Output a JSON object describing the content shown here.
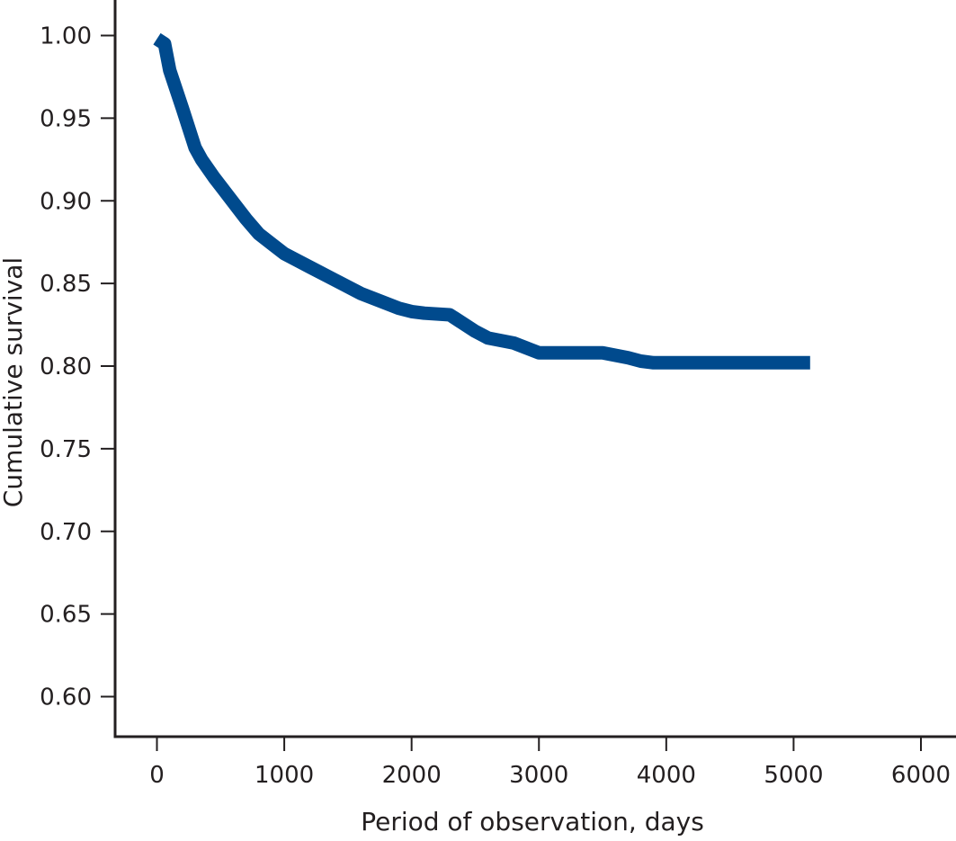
{
  "chart_data": {
    "type": "line",
    "title": "",
    "xlabel": "Period of observation, days",
    "ylabel": "Cumulative survival",
    "xlim": [
      -300,
      6000
    ],
    "ylim": [
      0.57,
      1.02
    ],
    "x_ticks": [
      0,
      1000,
      2000,
      3000,
      4000,
      5000,
      6000
    ],
    "x_tick_labels": [
      "0",
      "1000",
      "2000",
      "3000",
      "4000",
      "5000",
      "6000"
    ],
    "y_ticks": [
      0.6,
      0.65,
      0.7,
      0.75,
      0.8,
      0.85,
      0.9,
      0.95,
      1.0
    ],
    "y_tick_labels": [
      "0.60",
      "0.65",
      "0.70",
      "0.75",
      "0.80",
      "0.85",
      "0.90",
      "0.95",
      "1.00"
    ],
    "grid": false,
    "series": [
      {
        "color": "#004a8d",
        "x": [
          0,
          60,
          100,
          200,
          300,
          350,
          450,
          500,
          600,
          700,
          800,
          900,
          1000,
          1100,
          1200,
          1400,
          1600,
          1700,
          1900,
          2000,
          2100,
          2300,
          2400,
          2500,
          2600,
          2800,
          2900,
          3000,
          3100,
          3200,
          3500,
          3700,
          3800,
          3900,
          4000,
          4500,
          5000,
          5130
        ],
        "y": [
          0.998,
          0.995,
          0.979,
          0.956,
          0.932,
          0.925,
          0.914,
          0.909,
          0.899,
          0.889,
          0.88,
          0.874,
          0.868,
          0.864,
          0.86,
          0.852,
          0.844,
          0.841,
          0.835,
          0.833,
          0.832,
          0.831,
          0.826,
          0.821,
          0.817,
          0.814,
          0.811,
          0.808,
          0.808,
          0.808,
          0.808,
          0.805,
          0.803,
          0.802,
          0.802,
          0.802,
          0.802,
          0.802
        ]
      }
    ]
  }
}
